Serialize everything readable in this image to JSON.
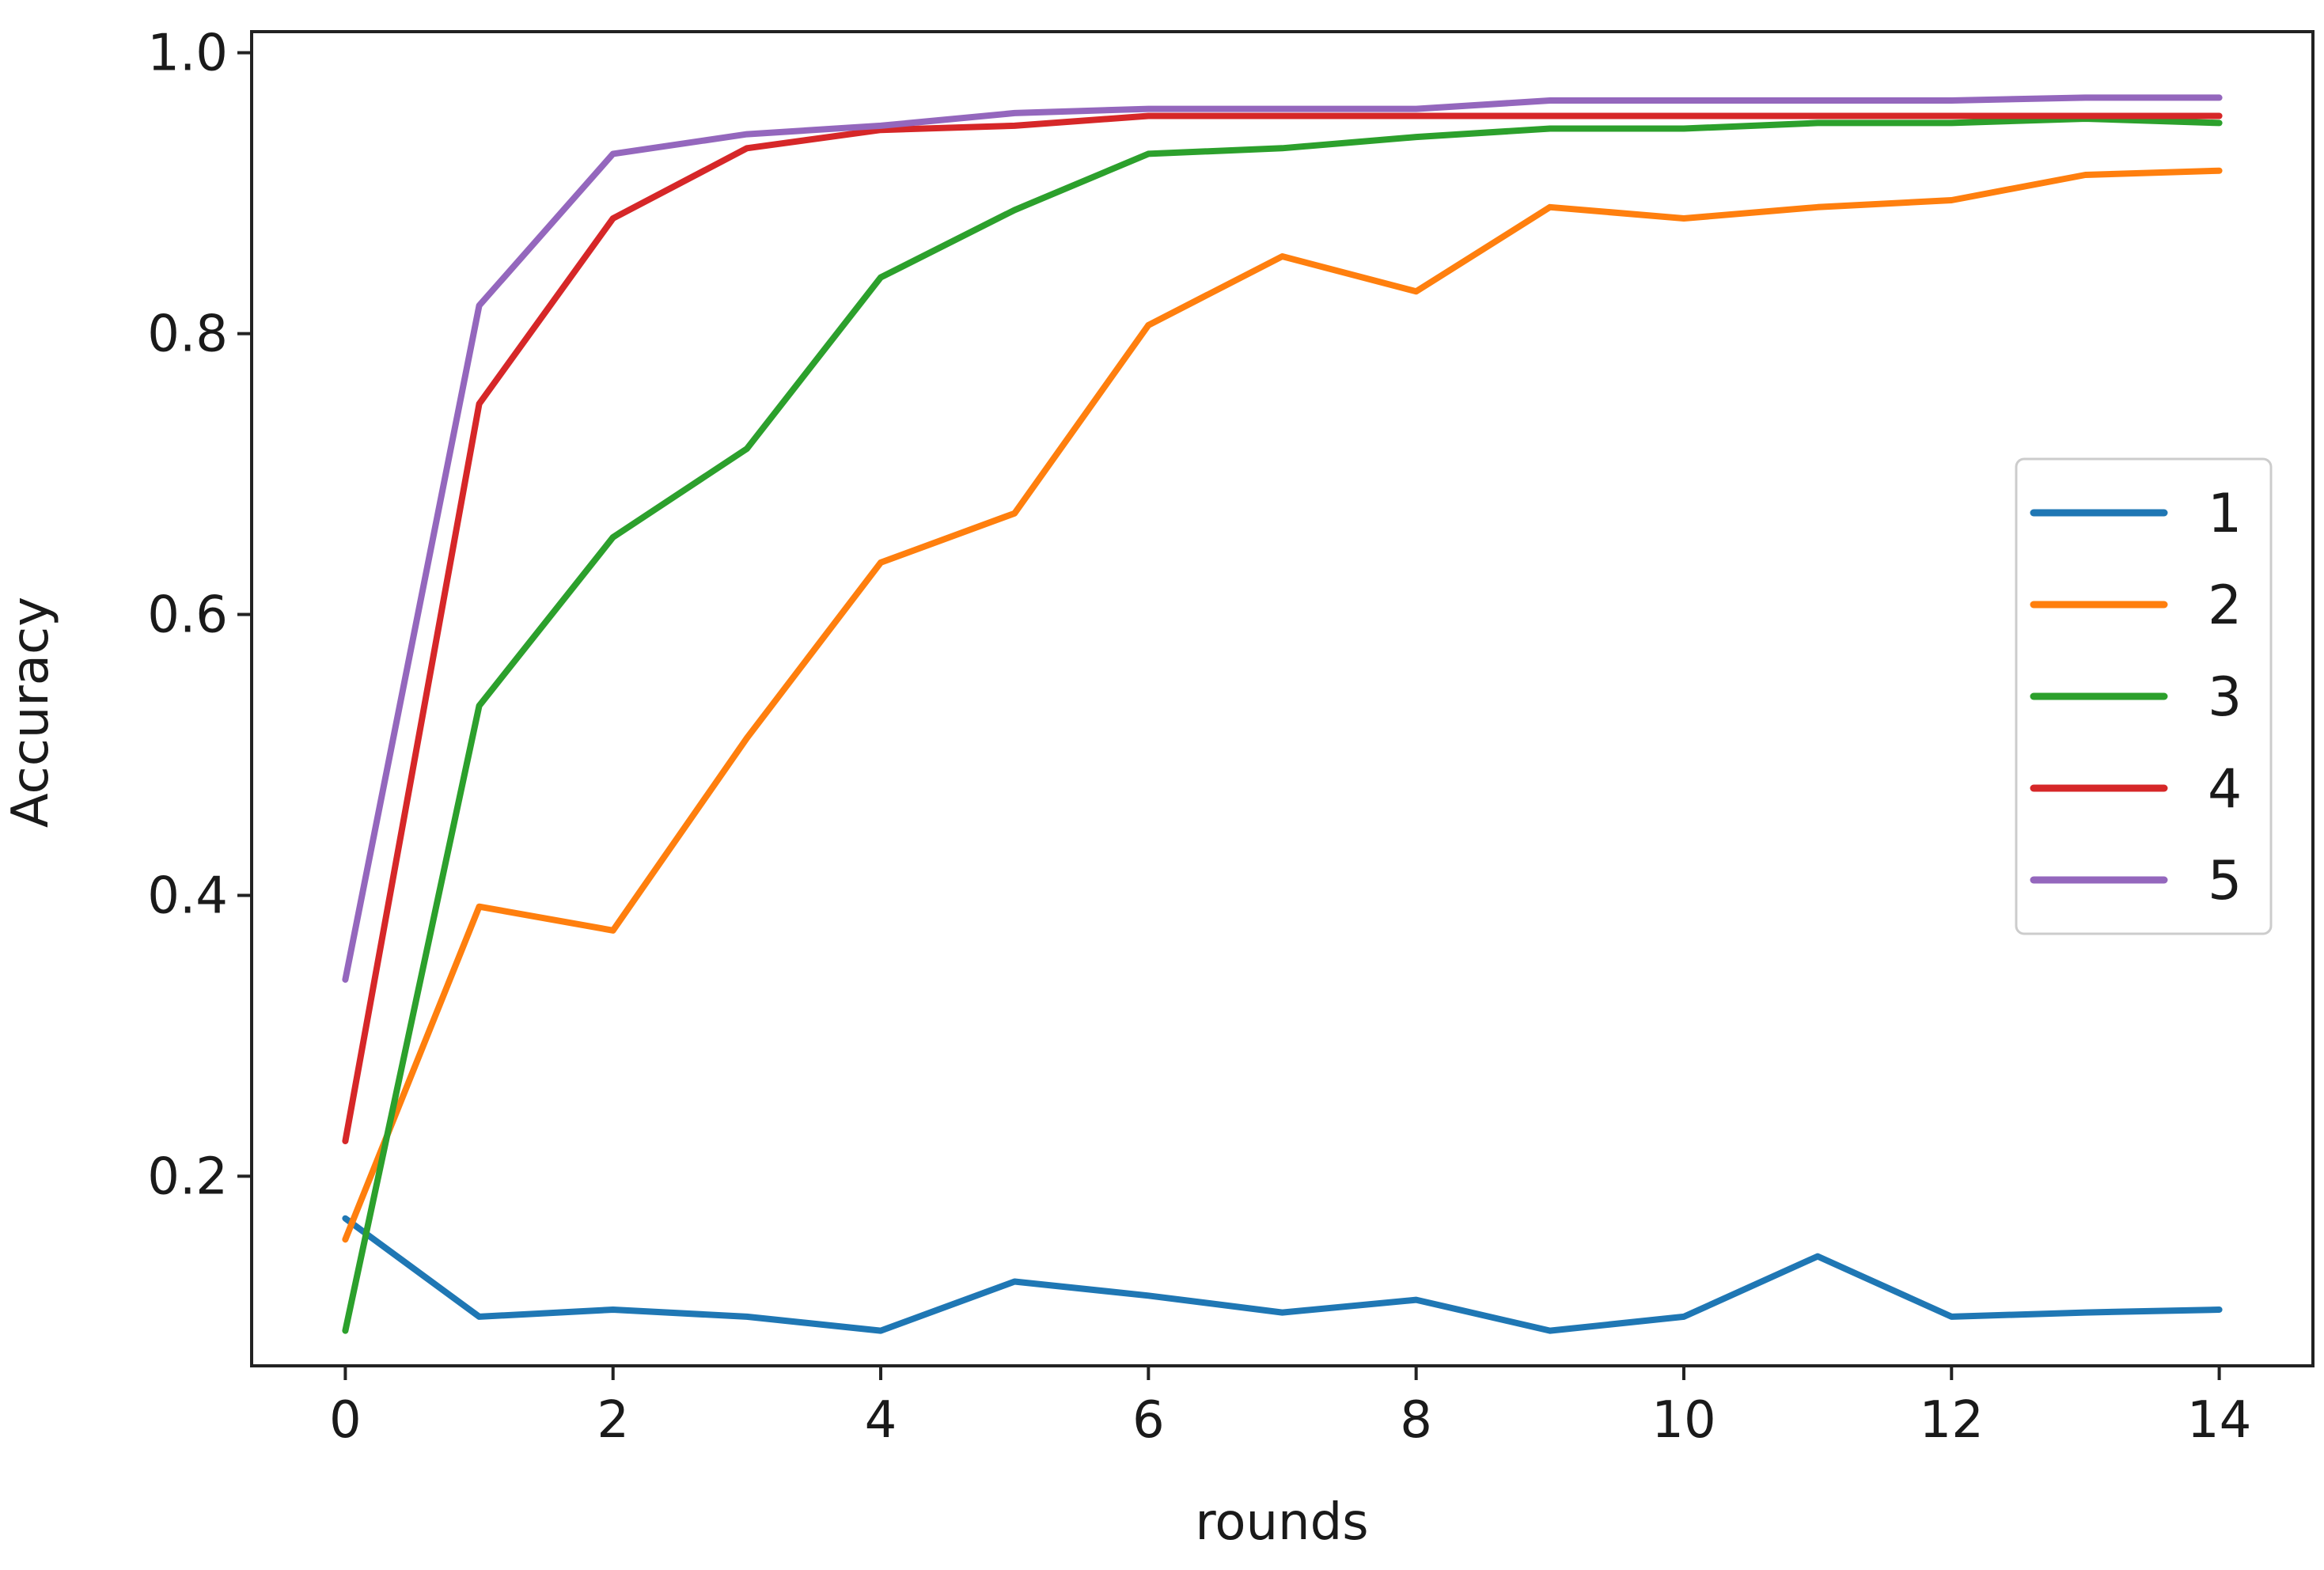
{
  "chart_data": {
    "type": "line",
    "title": "",
    "xlabel": "rounds",
    "ylabel": "Accuracy",
    "xlim": [
      -0.7,
      14.7
    ],
    "ylim": [
      0.065,
      1.015
    ],
    "x_ticks": [
      0,
      2,
      4,
      6,
      8,
      10,
      12,
      14
    ],
    "x_tick_labels": [
      "0",
      "2",
      "4",
      "6",
      "8",
      "10",
      "12",
      "14"
    ],
    "y_ticks": [
      0.2,
      0.4,
      0.6,
      0.8,
      1.0
    ],
    "y_tick_labels": [
      "0.2",
      "0.4",
      "0.6",
      "0.8",
      "1.0"
    ],
    "grid": false,
    "legend_position": "center-right",
    "x": [
      0,
      1,
      2,
      3,
      4,
      5,
      6,
      7,
      8,
      9,
      10,
      11,
      12,
      13,
      14
    ],
    "series": [
      {
        "name": "1",
        "color": "#1f77b4",
        "values": [
          0.17,
          0.1,
          0.105,
          0.1,
          0.09,
          0.125,
          0.115,
          0.103,
          0.112,
          0.09,
          0.1,
          0.143,
          0.1,
          0.103,
          0.105
        ]
      },
      {
        "name": "2",
        "color": "#ff7f0e",
        "values": [
          0.155,
          0.392,
          0.375,
          0.512,
          0.637,
          0.672,
          0.806,
          0.855,
          0.83,
          0.89,
          0.882,
          0.89,
          0.895,
          0.913,
          0.916
        ]
      },
      {
        "name": "3",
        "color": "#2ca02c",
        "values": [
          0.09,
          0.535,
          0.655,
          0.718,
          0.84,
          0.888,
          0.928,
          0.932,
          0.94,
          0.946,
          0.946,
          0.95,
          0.95,
          0.953,
          0.95
        ]
      },
      {
        "name": "4",
        "color": "#d62728",
        "values": [
          0.225,
          0.75,
          0.882,
          0.932,
          0.945,
          0.948,
          0.955,
          0.955,
          0.955,
          0.955,
          0.955,
          0.955,
          0.955,
          0.955,
          0.955
        ]
      },
      {
        "name": "5",
        "color": "#9467bd",
        "values": [
          0.34,
          0.82,
          0.928,
          0.942,
          0.948,
          0.957,
          0.96,
          0.96,
          0.96,
          0.966,
          0.966,
          0.966,
          0.966,
          0.968,
          0.968
        ]
      }
    ]
  }
}
